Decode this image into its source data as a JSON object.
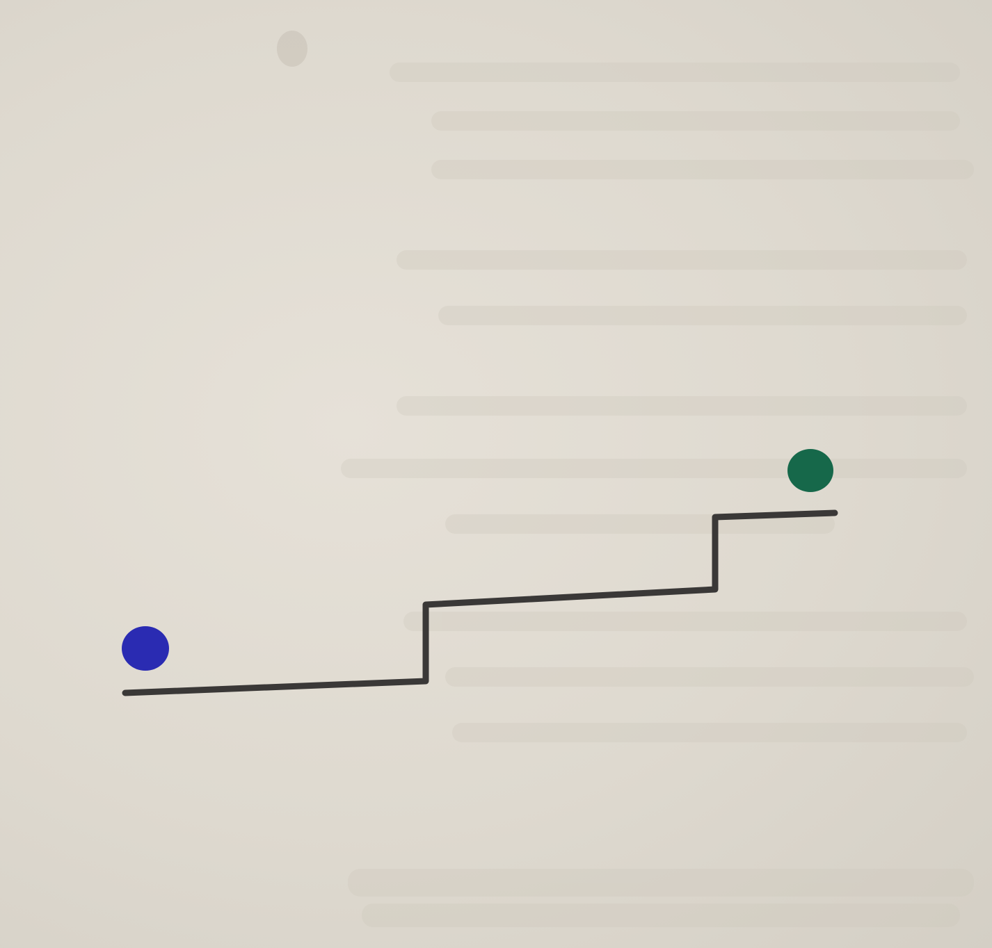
{
  "diagram": {
    "description_type": "hand-drawn staircase with two dots",
    "colors": {
      "paper": "#ddd8ce",
      "bleed_text": "#cfc9bd",
      "line": "#3a3837",
      "start_dot": "#2a2bb2",
      "end_dot": "#16684a"
    },
    "elements": [
      {
        "name": "staircase-line",
        "kind": "polyline"
      },
      {
        "name": "start-dot",
        "kind": "dot"
      },
      {
        "name": "end-dot",
        "kind": "dot"
      }
    ]
  }
}
